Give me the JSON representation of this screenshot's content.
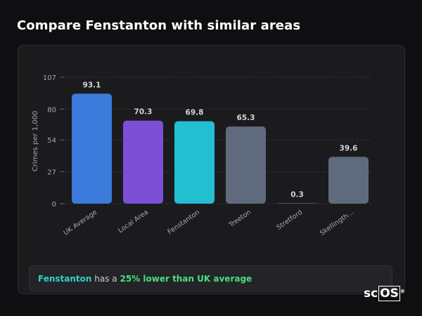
{
  "page": {
    "title": "Compare Fenstanton with similar areas"
  },
  "summary": {
    "name": "Fenstanton",
    "middle": "has a",
    "highlight": "25% lower than UK average"
  },
  "logo": {
    "text_plain": "sc",
    "text_boxed": "OS",
    "mark": "®"
  },
  "colors": {
    "background": "#0f0f11",
    "card": "#1b1b1e",
    "accent": "#2ad4c4",
    "positive": "#4ade80"
  },
  "chart_data": {
    "type": "bar",
    "ylabel": "Crimes per 1,000",
    "xlabel": "",
    "ylim": [
      0,
      107
    ],
    "yticks": [
      0,
      27,
      54,
      80,
      107
    ],
    "grid": true,
    "categories": [
      "UK Average",
      "Local Area",
      "Fenstanton",
      "Treeton",
      "Stretford",
      "Skellingth..."
    ],
    "values": [
      93.1,
      70.3,
      69.8,
      65.3,
      0.3,
      39.6
    ],
    "value_labels": [
      "93.1",
      "70.3",
      "69.8",
      "65.3",
      "0.3",
      "39.6"
    ],
    "bar_colors": [
      "#3b7bdc",
      "#7b4fd6",
      "#22bfd1",
      "#5f6b7c",
      "#5f6b7c",
      "#5f6b7c"
    ]
  }
}
